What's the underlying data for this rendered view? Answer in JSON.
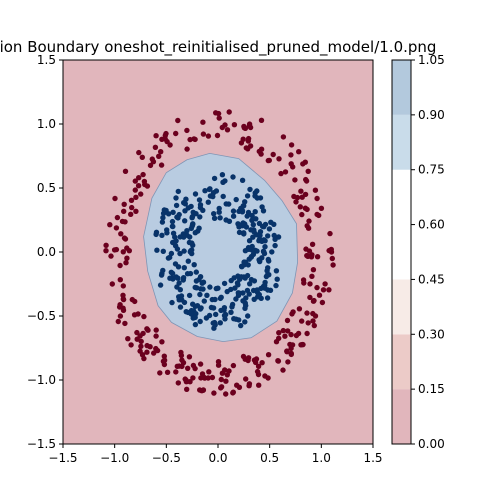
{
  "chart_data": {
    "type": "contour-scatter",
    "title": "ion Boundary oneshot_reinitialised_pruned_model/1.0.png",
    "xlabel": "",
    "ylabel": "",
    "xlim": [
      -1.5,
      1.5
    ],
    "ylim": [
      -1.5,
      1.5
    ],
    "x_ticks": [
      -1.5,
      -1.0,
      -0.5,
      0.0,
      0.5,
      1.0,
      1.5
    ],
    "y_ticks": [
      -1.5,
      -1.0,
      -0.5,
      0.0,
      0.5,
      1.0,
      1.5
    ],
    "x_tick_labels": [
      "−1.5",
      "−1.0",
      "−0.5",
      "0.0",
      "0.5",
      "1.0",
      "1.5"
    ],
    "y_tick_labels": [
      "−1.5",
      "−1.0",
      "−0.5",
      "0.0",
      "0.5",
      "1.0",
      "1.5"
    ],
    "grid": false,
    "colorbar": {
      "levels": [
        0.0,
        0.15,
        0.3,
        0.45,
        0.6,
        0.75,
        0.9,
        1.05
      ],
      "tick_labels": [
        "0.00",
        "0.15",
        "0.30",
        "0.45",
        "0.60",
        "0.75",
        "0.90",
        "1.05"
      ],
      "band_colors": [
        "#e1b6bc",
        "#eccbc8",
        "#f7ebe7",
        "#ffffff",
        "#ffffff",
        "#c9dcea",
        "#b3c9dd"
      ]
    },
    "decision_region": {
      "level_range": [
        0.9,
        1.05
      ],
      "fill_color": "#b9cce1",
      "edge_color": "#7f95b5",
      "boundary": [
        [
          -0.3,
          0.72
        ],
        [
          -0.08,
          0.77
        ],
        [
          0.2,
          0.73
        ],
        [
          0.45,
          0.56
        ],
        [
          0.62,
          0.4
        ],
        [
          0.76,
          0.22
        ],
        [
          0.77,
          -0.08
        ],
        [
          0.72,
          -0.32
        ],
        [
          0.57,
          -0.54
        ],
        [
          0.32,
          -0.67
        ],
        [
          0.05,
          -0.7
        ],
        [
          -0.2,
          -0.66
        ],
        [
          -0.45,
          -0.55
        ],
        [
          -0.58,
          -0.42
        ],
        [
          -0.68,
          -0.15
        ],
        [
          -0.72,
          0.12
        ],
        [
          -0.64,
          0.42
        ],
        [
          -0.5,
          0.62
        ]
      ]
    },
    "background_color": "#e1b6bc",
    "series": [
      {
        "color": "#6b001e",
        "ring_radius": [
          0.85,
          1.12
        ],
        "count": 300
      },
      {
        "color": "#083369",
        "ring_radius": [
          0.25,
          0.62
        ],
        "count": 330
      }
    ]
  }
}
